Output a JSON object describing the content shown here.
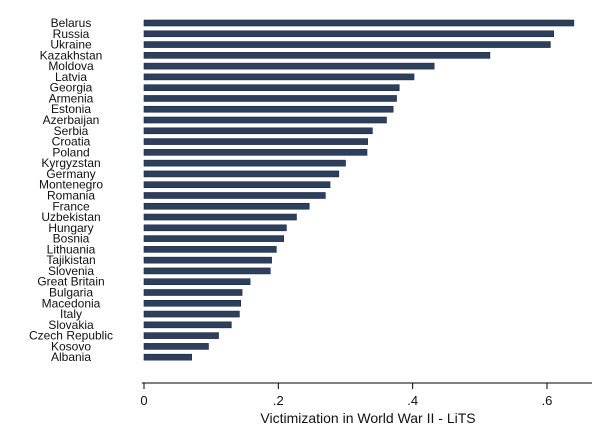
{
  "chart_data": {
    "type": "bar",
    "orientation": "horizontal",
    "categories": [
      "Belarus",
      "Russia",
      "Ukraine",
      "Kazakhstan",
      "Moldova",
      "Latvia",
      "Georgia",
      "Armenia",
      "Estonia",
      "Azerbaijan",
      "Serbia",
      "Croatia",
      "Poland",
      "Kyrgyzstan",
      "Germany",
      "Montenegro",
      "Romania",
      "France",
      "Uzbekistan",
      "Hungary",
      "Bosnia",
      "Lithuania",
      "Tajikistan",
      "Slovenia",
      "Great Britain",
      "Bulgaria",
      "Macedonia",
      "Italy",
      "Slovakia",
      "Czech Republic",
      "Kosovo",
      "Albania"
    ],
    "values": [
      0.64,
      0.61,
      0.605,
      0.515,
      0.432,
      0.402,
      0.38,
      0.376,
      0.371,
      0.361,
      0.34,
      0.333,
      0.332,
      0.3,
      0.29,
      0.277,
      0.27,
      0.246,
      0.227,
      0.212,
      0.208,
      0.197,
      0.19,
      0.188,
      0.158,
      0.146,
      0.144,
      0.142,
      0.13,
      0.111,
      0.096,
      0.071
    ],
    "xlabel": "Victimization in World War II - LiTS",
    "ylabel": "",
    "xlim": [
      0,
      0.667
    ],
    "xticks": [
      0,
      0.2,
      0.4,
      0.6
    ],
    "xtick_labels": [
      "0",
      ".2",
      ".4",
      ".6"
    ],
    "bar_color": "#2e3f5c",
    "grid": false
  }
}
